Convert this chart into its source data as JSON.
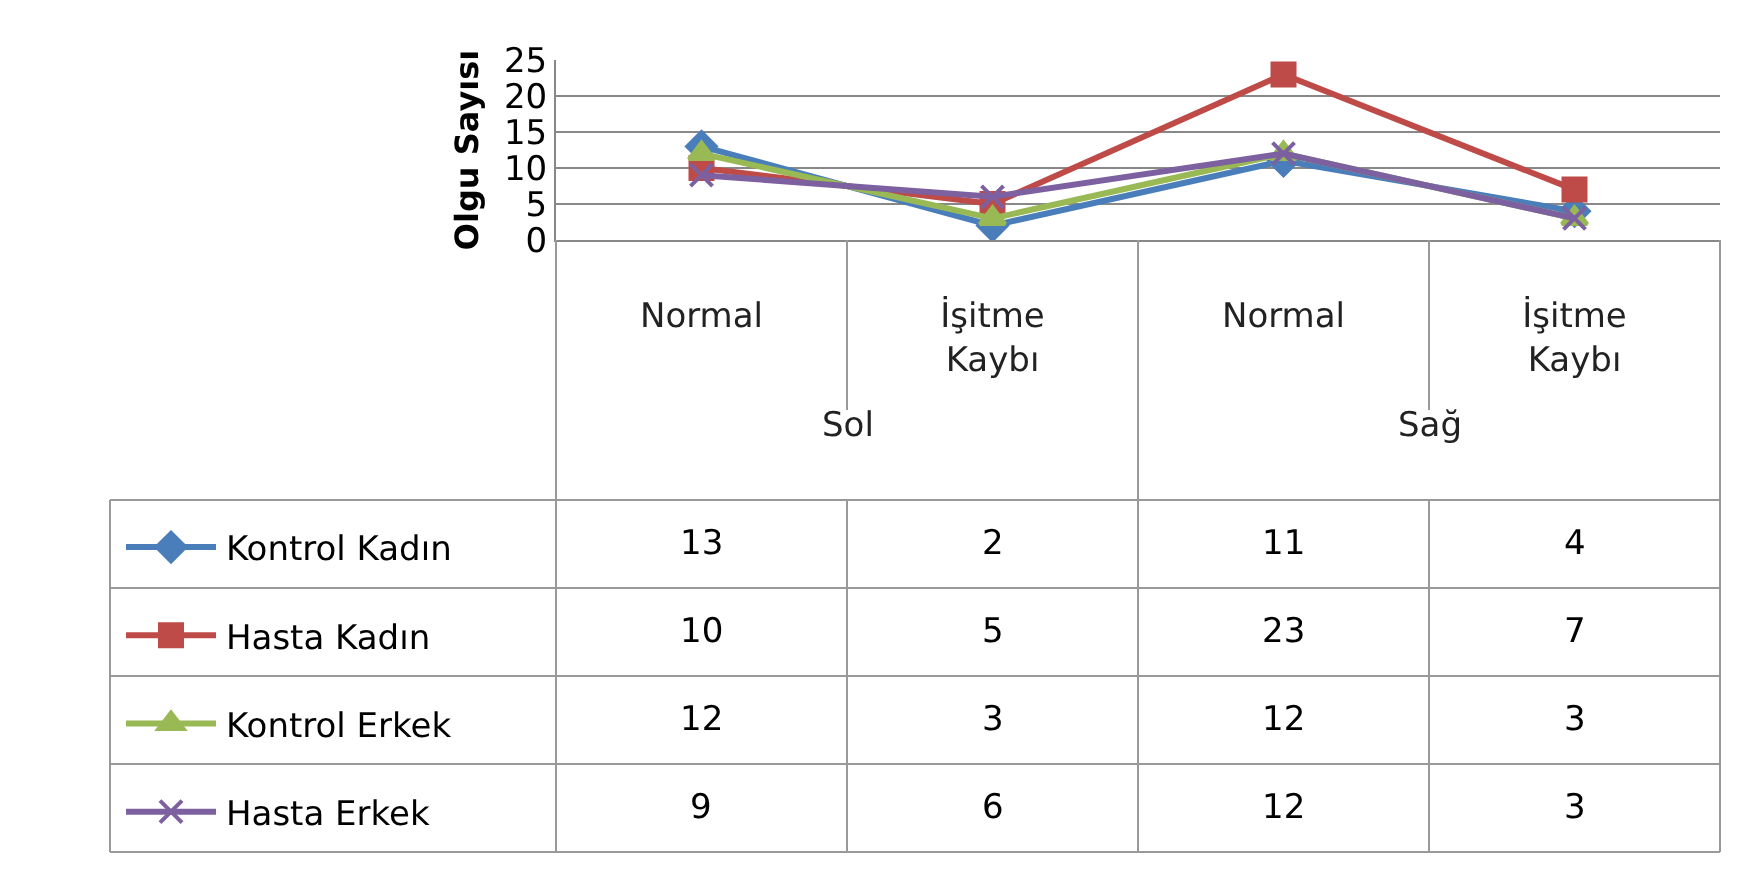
{
  "chart_data": {
    "type": "line",
    "ylabel": "Olgu Sayısı",
    "categories": [
      "Normal",
      "İşitme Kaybı",
      "Normal",
      "İşitme Kaybı"
    ],
    "annotations": [
      "Sol",
      "Sağ"
    ],
    "series": [
      {
        "name": "Kontrol Kadın",
        "color": "#4a7ebb",
        "marker": "diamond",
        "values": [
          13,
          2,
          11,
          4
        ]
      },
      {
        "name": "Hasta Kadın",
        "color": "#be4b48",
        "marker": "square",
        "values": [
          10,
          5,
          23,
          7
        ]
      },
      {
        "name": "Kontrol Erkek",
        "color": "#98b954",
        "marker": "triangle",
        "values": [
          12,
          3,
          12,
          3
        ]
      },
      {
        "name": "Hasta Erkek",
        "color": "#7d60a0",
        "marker": "cross",
        "values": [
          9,
          6,
          12,
          3
        ]
      }
    ],
    "ylim": [
      0,
      25
    ],
    "yticks": [
      0,
      5,
      10,
      15,
      20,
      25
    ],
    "grid": "y",
    "data_labels": true,
    "legend": "bottom left",
    "line_style": "solid"
  }
}
